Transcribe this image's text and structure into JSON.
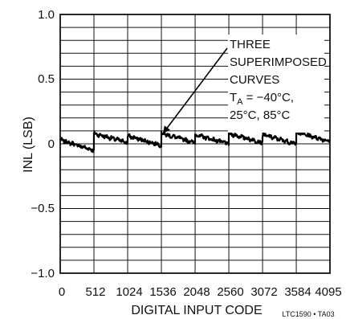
{
  "chart_data": {
    "type": "line",
    "title": "",
    "xlabel": "DIGITAL INPUT CODE",
    "ylabel": "INL (LSB)",
    "xlim": [
      0,
      4095
    ],
    "ylim": [
      -1.0,
      1.0
    ],
    "x_ticks": [
      0,
      512,
      1024,
      1536,
      2048,
      2560,
      3072,
      3584,
      4095
    ],
    "x_tick_labels": [
      "0",
      "512",
      "1024",
      "1536",
      "2048",
      "2560",
      "3072",
      "3584",
      "4095"
    ],
    "y_tick_labels": [
      {
        "value": 1.0,
        "label": "1.0"
      },
      {
        "value": 0.5,
        "label": "0.5"
      },
      {
        "value": 0.0,
        "label": "0"
      },
      {
        "value": -0.5,
        "label": "−0.5"
      },
      {
        "value": -1.0,
        "label": "−1.0"
      }
    ],
    "grid": true,
    "series": [
      {
        "color": "#000000",
        "x": [
          0,
          511,
          512,
          1023,
          1024,
          1535,
          1536,
          2047,
          2048,
          2559,
          2560,
          3071,
          3072,
          3583,
          3584,
          4095
        ],
        "y": [
          0.03,
          -0.05,
          0.08,
          0.01,
          0.06,
          -0.01,
          0.08,
          0.01,
          0.07,
          0.0,
          0.08,
          0.01,
          0.07,
          0.0,
          0.09,
          0.02
        ]
      }
    ],
    "annotation": {
      "lines": [
        "THREE",
        "SUPERIMPOSED",
        "CURVES"
      ],
      "temp_prefix": "T",
      "temp_subscript": "A",
      "temp_suffix": " = −40°C,",
      "temp_line2": "25°C, 85°C",
      "arrow_target": {
        "x": 1560,
        "y": 0.08
      }
    },
    "figure_id": "LTC1590 • TA03"
  }
}
